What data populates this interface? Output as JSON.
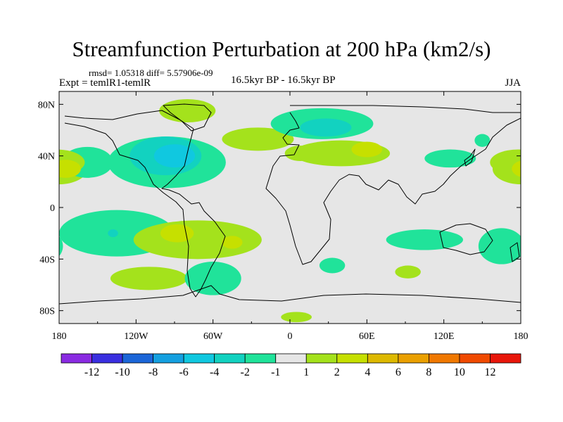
{
  "chart_data": {
    "type": "map-contour",
    "title": "Streamfunction Perturbation at 200 hPa (km2/s)",
    "stats": "rmsd= 1.05318  diff= 5.57906e-09",
    "left_label": "Expt = temlR1-temlR",
    "center_label": "16.5kyr BP - 16.5kyr BP",
    "right_label": "JJA",
    "x_ticks": [
      "180",
      "120W",
      "60W",
      "0",
      "60E",
      "120E",
      "180"
    ],
    "x_tick_lons": [
      -180,
      -120,
      -60,
      0,
      60,
      120,
      180
    ],
    "y_ticks": [
      "80N",
      "40N",
      "0",
      "40S",
      "80S"
    ],
    "y_tick_lats": [
      80,
      40,
      0,
      -40,
      -80
    ],
    "lon_range": [
      -180,
      180
    ],
    "lat_range": [
      -90,
      90
    ],
    "colorbar": {
      "colors": [
        "#8a2be2",
        "#3a2fe0",
        "#1c66d8",
        "#14a0e0",
        "#10c8e0",
        "#12d2c0",
        "#20e39a",
        "#e6e6e6",
        "#a4e21c",
        "#c6e000",
        "#ddb900",
        "#eaa000",
        "#f07800",
        "#f04a00",
        "#e8160a"
      ],
      "labels": [
        "-12",
        "-10",
        "-8",
        "-6",
        "-4",
        "-2",
        "-1",
        "1",
        "2",
        "4",
        "6",
        "8",
        "10",
        "12"
      ]
    },
    "anomaly_regions": [
      {
        "name": "Pacific subtropical NE",
        "lon": -180,
        "lat": 30,
        "rlon": 22,
        "rlat": 12,
        "level": 1
      },
      {
        "name": "Pacific subtropical NE core",
        "lon": -175,
        "lat": 30,
        "rlon": 12,
        "rlat": 7,
        "level": 2
      },
      {
        "name": "North Pacific trough",
        "lon": -158,
        "lat": 35,
        "rlon": 20,
        "rlat": 12,
        "level": -1
      },
      {
        "name": "North America trough",
        "lon": -96,
        "lat": 35,
        "rlon": 46,
        "rlat": 20,
        "level": -1
      },
      {
        "name": "North America trough inner",
        "lon": -97,
        "lat": 40,
        "rlon": 28,
        "rlat": 15,
        "level": -2
      },
      {
        "name": "North America trough core",
        "lon": -90,
        "lat": 40,
        "rlon": 16,
        "rlat": 9,
        "level": -4
      },
      {
        "name": "Greenland ridge",
        "lon": -80,
        "lat": 75,
        "rlon": 22,
        "rlat": 9,
        "level": 1
      },
      {
        "name": "North Atlantic ridge",
        "lon": -25,
        "lat": 53,
        "rlon": 28,
        "rlat": 9,
        "level": 1
      },
      {
        "name": "Scandinavia trough",
        "lon": 25,
        "lat": 65,
        "rlon": 40,
        "rlat": 12,
        "level": -1
      },
      {
        "name": "Scandinavia trough core",
        "lon": 28,
        "lat": 62,
        "rlon": 20,
        "rlat": 7,
        "level": -2
      },
      {
        "name": "Eurasia ridge",
        "lon": 40,
        "lat": 42,
        "rlon": 38,
        "rlat": 10,
        "level": 1
      },
      {
        "name": "Europe ridge",
        "lon": 8,
        "lat": 42,
        "rlon": 12,
        "rlat": 6,
        "level": 1
      },
      {
        "name": "Central Asia ridge core",
        "lon": 60,
        "lat": 45,
        "rlon": 12,
        "rlat": 6,
        "level": 2
      },
      {
        "name": "East Asia trough",
        "lon": 125,
        "lat": 38,
        "rlon": 20,
        "rlat": 7,
        "level": -1
      },
      {
        "name": "Kamchatka trough",
        "lon": 150,
        "lat": 52,
        "rlon": 6,
        "rlat": 5,
        "level": -1
      },
      {
        "name": "NE Pacific dateline ridge",
        "lon": 178,
        "lat": 35,
        "rlon": 22,
        "rlat": 10,
        "level": 1
      },
      {
        "name": "South Pacific trough",
        "lon": -135,
        "lat": -20,
        "rlon": 45,
        "rlat": 18,
        "level": -1
      },
      {
        "name": "South Pacific trough core",
        "lon": -138,
        "lat": -20,
        "rlon": 4,
        "rlat": 3,
        "level": -2
      },
      {
        "name": "South America ridge",
        "lon": -72,
        "lat": -25,
        "rlon": 50,
        "rlat": 15,
        "level": 1
      },
      {
        "name": "South America ridge core",
        "lon": -88,
        "lat": -20,
        "rlon": 13,
        "rlat": 7,
        "level": 2
      },
      {
        "name": "South Atlantic ridge core",
        "lon": -45,
        "lat": -27,
        "rlon": 8,
        "rlat": 5,
        "level": 2
      },
      {
        "name": "Southern Ocean ridge",
        "lon": -110,
        "lat": -55,
        "rlon": 30,
        "rlat": 9,
        "level": 1
      },
      {
        "name": "Drake trough",
        "lon": -60,
        "lat": -55,
        "rlon": 22,
        "rlat": 13,
        "level": -1
      },
      {
        "name": "South Atlantic small trough",
        "lon": 33,
        "lat": -45,
        "rlon": 10,
        "rlat": 6,
        "level": -1
      },
      {
        "name": "Indian Ocean trough",
        "lon": 105,
        "lat": -25,
        "rlon": 30,
        "rlat": 8,
        "level": -1
      },
      {
        "name": "Indian Ocean small ridge",
        "lon": 92,
        "lat": -50,
        "rlon": 10,
        "rlat": 5,
        "level": 1
      },
      {
        "name": "SW Pacific trough",
        "lon": 165,
        "lat": -30,
        "rlon": 18,
        "rlat": 14,
        "level": -1
      },
      {
        "name": "Antarctic ridge",
        "lon": 5,
        "lat": -85,
        "rlon": 12,
        "rlat": 4,
        "level": 1
      }
    ]
  }
}
